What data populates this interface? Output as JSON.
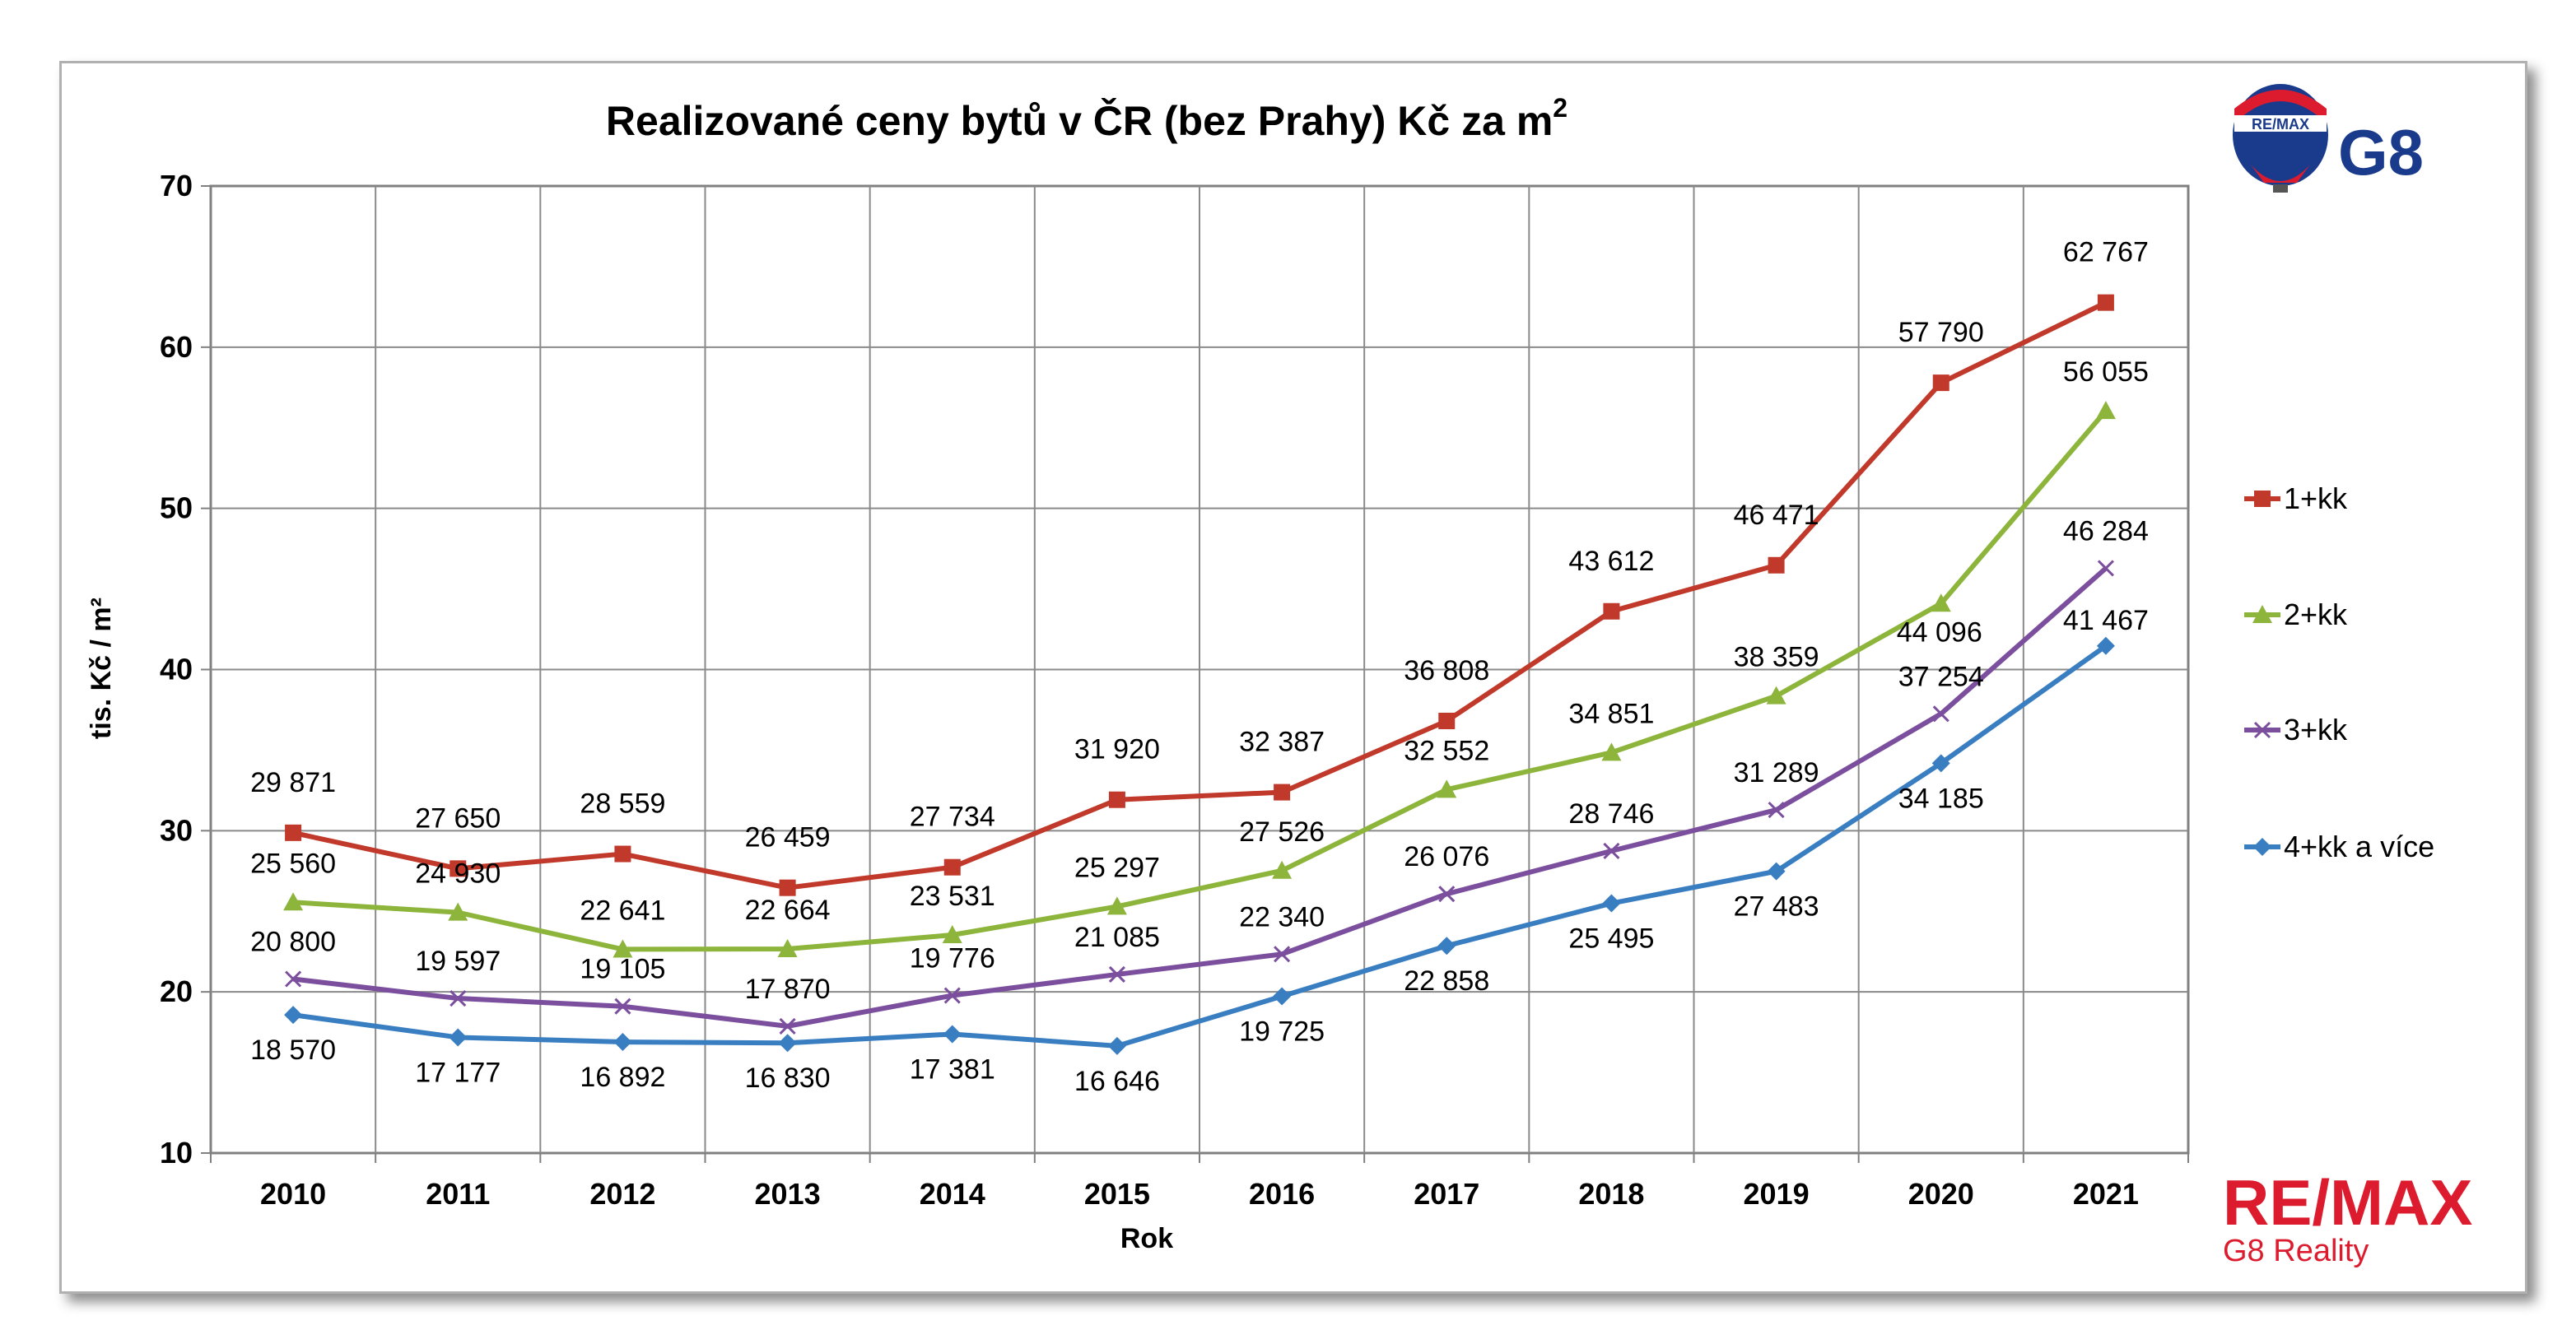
{
  "chart_data": {
    "type": "line",
    "title": "Realizované ceny bytů v ČR (bez Prahy) Kč za m",
    "title_sup": "2",
    "xlabel": "Rok",
    "ylabel": "tis. Kč / m²",
    "ylim": [
      10,
      70
    ],
    "yticks": [
      "10",
      "20",
      "30",
      "40",
      "50",
      "60",
      "70"
    ],
    "grid": true,
    "legend_position": "right",
    "x": [
      "2010",
      "2011",
      "2012",
      "2013",
      "2014",
      "2015",
      "2016",
      "2017",
      "2018",
      "2019",
      "2020",
      "2021"
    ],
    "series": [
      {
        "name": "1+kk",
        "color": "#c0392b",
        "marker": "square",
        "values": [
          29.871,
          27.65,
          28.559,
          26.459,
          27.734,
          31.92,
          32.387,
          36.808,
          43.612,
          46.471,
          57.79,
          62.767
        ],
        "labels": [
          "29 871",
          "27 650",
          "28 559",
          "26 459",
          "27 734",
          "31 920",
          "32 387",
          "36 808",
          "43 612",
          "46 471",
          "57 790",
          "62 767"
        ]
      },
      {
        "name": "2+kk",
        "color": "#8db53c",
        "marker": "triangle",
        "values": [
          25.56,
          24.93,
          22.641,
          22.664,
          23.531,
          25.297,
          27.526,
          32.552,
          34.851,
          38.359,
          44.096,
          56.055
        ],
        "labels": [
          "25 560",
          "24 930",
          "22 641",
          "22 664",
          "23 531",
          "25 297",
          "27 526",
          "32 552",
          "34 851",
          "38 359",
          "44 096",
          "56 055"
        ]
      },
      {
        "name": "3+kk",
        "color": "#7b4f9d",
        "marker": "x",
        "values": [
          20.8,
          19.597,
          19.105,
          17.87,
          19.776,
          21.085,
          22.34,
          26.076,
          28.746,
          31.289,
          37.254,
          46.284
        ],
        "labels": [
          "20 800",
          "19 597",
          "19 105",
          "17 870",
          "19 776",
          "21 085",
          "22 340",
          "26 076",
          "28 746",
          "31 289",
          "37 254",
          "46 284"
        ]
      },
      {
        "name": "4+kk a více",
        "color": "#3a7ec2",
        "marker": "diamond",
        "values": [
          18.57,
          17.177,
          16.892,
          16.83,
          17.381,
          16.646,
          19.725,
          22.858,
          25.495,
          27.483,
          34.185,
          41.467
        ],
        "labels": [
          "18 570",
          "17 177",
          "16 892",
          "16 830",
          "17 381",
          "16 646",
          "19 725",
          "22 858",
          "25 495",
          "27 483",
          "34 185",
          "41 467"
        ]
      }
    ]
  },
  "branding": {
    "balloon_text": "RE/MAX",
    "logo_text": "G8",
    "footer_logo": "RE/MAX",
    "footer_sub": "G8 Reality",
    "colors": {
      "red": "#dc1c2e",
      "blue": "#1a3a8c"
    }
  }
}
